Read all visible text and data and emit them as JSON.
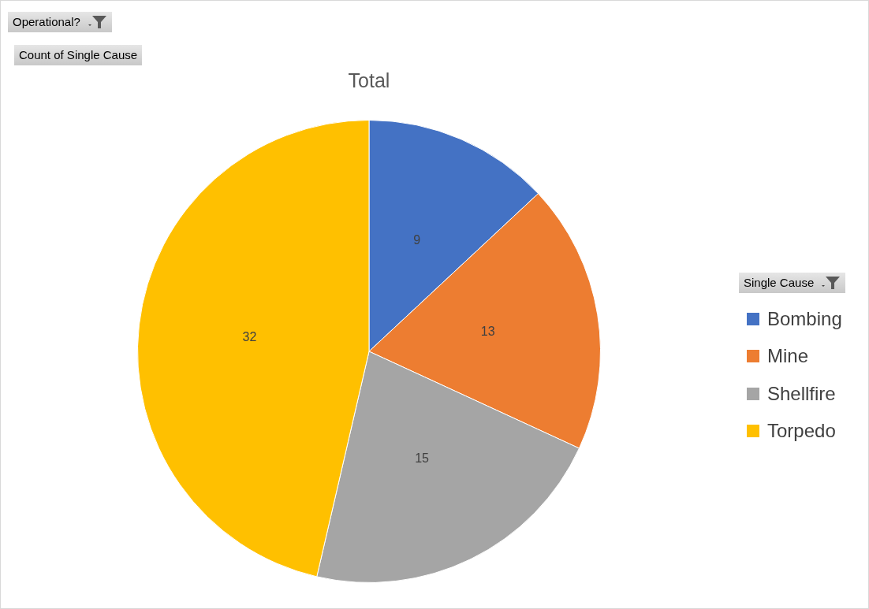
{
  "chart_data": {
    "type": "pie",
    "title": "Total",
    "legend_title": "Single Cause",
    "legend": "right",
    "annotations": [
      "Operational?",
      "Count of Single Cause"
    ],
    "categories": [
      "Bombing",
      "Mine",
      "Shellfire",
      "Torpedo"
    ],
    "values": [
      9,
      13,
      15,
      32
    ],
    "colors": [
      "#4472c4",
      "#ed7d31",
      "#a5a5a5",
      "#ffc000"
    ],
    "data_labels": true
  }
}
